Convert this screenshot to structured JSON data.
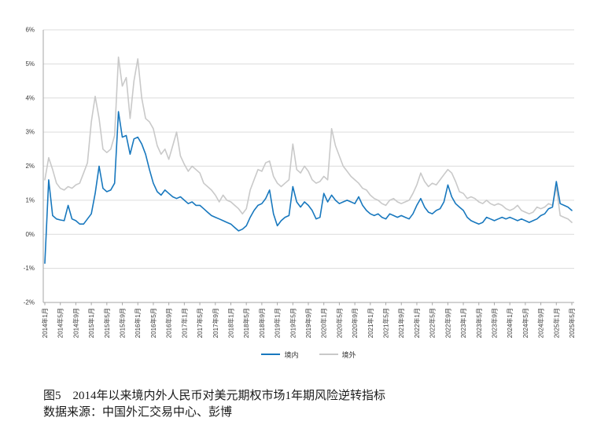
{
  "figure": {
    "caption_title": "图5　2014年以来境内外人民币对美元期权市场1年期风险逆转指标",
    "caption_source": "数据来源：中国外汇交易中心、彭博"
  },
  "legend": {
    "onshore_label": "境内",
    "offshore_label": "境外"
  },
  "colors": {
    "onshore_line": "#1878BE",
    "offshore_line": "#C9C9C9",
    "gridline": "#DCDCDC",
    "axis_line": "#A6A6A6",
    "tick_label": "#3B3B3B"
  },
  "chart_data": {
    "type": "line",
    "title": "图5　2014年以来境内外人民币对美元期权市场1年期风险逆转指标",
    "source": "数据来源：中国外汇交易中心、彭博",
    "x_frequency": "monthly",
    "x_start": "2014年1月",
    "x_end": "2025年5月",
    "x_tick_every": 4,
    "x_tick_labels": [
      "2014年1月",
      "2014年5月",
      "2014年9月",
      "2015年1月",
      "2015年5月",
      "2015年9月",
      "2016年1月",
      "2016年5月",
      "2016年9月",
      "2017年1月",
      "2017年5月",
      "2017年9月",
      "2018年1月",
      "2018年5月",
      "2018年9月",
      "2019年1月",
      "2019年5月",
      "2019年9月",
      "2020年1月",
      "2020年5月",
      "2020年9月",
      "2021年1月",
      "2021年5月",
      "2021年9月",
      "2022年1月",
      "2022年5月",
      "2022年9月",
      "2023年1月",
      "2023年5月",
      "2023年9月",
      "2024年1月",
      "2024年5月",
      "2024年9月",
      "2025年1月",
      "2025年5月"
    ],
    "ylim": [
      -2,
      6
    ],
    "y_tick_step": 1,
    "y_tick_labels": [
      "6%",
      "5%",
      "4%",
      "3%",
      "2%",
      "1%",
      "0%",
      "-1%",
      "-2%"
    ],
    "y_unit": "%",
    "grid": true,
    "legend_position": "bottom-center",
    "series": [
      {
        "name": "境内",
        "color": "#1878BE",
        "values": [
          -0.85,
          1.6,
          0.55,
          0.45,
          0.42,
          0.4,
          0.85,
          0.45,
          0.4,
          0.3,
          0.3,
          0.45,
          0.6,
          1.2,
          2.0,
          1.35,
          1.25,
          1.3,
          1.5,
          3.6,
          2.85,
          2.9,
          2.35,
          2.8,
          2.85,
          2.65,
          2.35,
          1.9,
          1.5,
          1.25,
          1.15,
          1.3,
          1.2,
          1.1,
          1.05,
          1.1,
          1.0,
          0.9,
          0.95,
          0.85,
          0.85,
          0.75,
          0.65,
          0.55,
          0.5,
          0.45,
          0.4,
          0.35,
          0.3,
          0.2,
          0.1,
          0.15,
          0.25,
          0.5,
          0.7,
          0.85,
          0.9,
          1.05,
          1.3,
          0.6,
          0.25,
          0.4,
          0.5,
          0.55,
          1.4,
          0.95,
          0.8,
          0.95,
          0.85,
          0.7,
          0.45,
          0.5,
          1.2,
          0.95,
          1.15,
          1.0,
          0.9,
          0.95,
          1.0,
          0.95,
          0.9,
          1.1,
          0.85,
          0.7,
          0.6,
          0.55,
          0.6,
          0.5,
          0.45,
          0.6,
          0.55,
          0.5,
          0.55,
          0.5,
          0.45,
          0.6,
          0.85,
          1.05,
          0.8,
          0.65,
          0.6,
          0.7,
          0.75,
          0.95,
          1.45,
          1.1,
          0.9,
          0.8,
          0.7,
          0.5,
          0.4,
          0.35,
          0.3,
          0.35,
          0.5,
          0.45,
          0.4,
          0.45,
          0.5,
          0.45,
          0.5,
          0.45,
          0.4,
          0.45,
          0.4,
          0.35,
          0.4,
          0.45,
          0.55,
          0.6,
          0.75,
          0.8,
          1.55,
          0.9,
          0.85,
          0.8,
          0.7
        ]
      },
      {
        "name": "境外",
        "color": "#C9C9C9",
        "values": [
          1.6,
          2.25,
          1.9,
          1.5,
          1.35,
          1.3,
          1.4,
          1.35,
          1.45,
          1.5,
          1.8,
          2.1,
          3.3,
          4.05,
          3.4,
          2.5,
          2.4,
          2.5,
          2.9,
          5.2,
          4.35,
          4.6,
          3.4,
          4.5,
          5.15,
          4.0,
          3.4,
          3.3,
          3.1,
          2.6,
          2.35,
          2.5,
          2.2,
          2.6,
          3.0,
          2.3,
          2.05,
          1.85,
          2.0,
          1.9,
          1.8,
          1.5,
          1.4,
          1.3,
          1.15,
          0.95,
          1.15,
          1.0,
          0.95,
          0.85,
          0.75,
          0.6,
          0.75,
          1.3,
          1.6,
          1.9,
          1.85,
          2.1,
          2.15,
          1.7,
          1.5,
          1.4,
          1.5,
          1.6,
          2.65,
          1.9,
          1.8,
          2.0,
          1.85,
          1.6,
          1.5,
          1.55,
          1.7,
          1.6,
          3.1,
          2.6,
          2.3,
          2.0,
          1.85,
          1.7,
          1.6,
          1.5,
          1.35,
          1.3,
          1.15,
          1.05,
          1.0,
          0.9,
          0.85,
          1.0,
          1.05,
          0.95,
          0.9,
          0.95,
          1.0,
          1.2,
          1.45,
          1.8,
          1.55,
          1.4,
          1.5,
          1.45,
          1.6,
          1.75,
          1.9,
          1.8,
          1.55,
          1.25,
          1.2,
          1.05,
          1.1,
          1.05,
          0.95,
          0.9,
          1.0,
          0.9,
          0.85,
          0.9,
          0.85,
          0.75,
          0.7,
          0.75,
          0.85,
          0.7,
          0.65,
          0.6,
          0.65,
          0.8,
          0.75,
          0.8,
          0.9,
          0.85,
          1.4,
          0.55,
          0.5,
          0.45,
          0.35
        ]
      }
    ]
  }
}
